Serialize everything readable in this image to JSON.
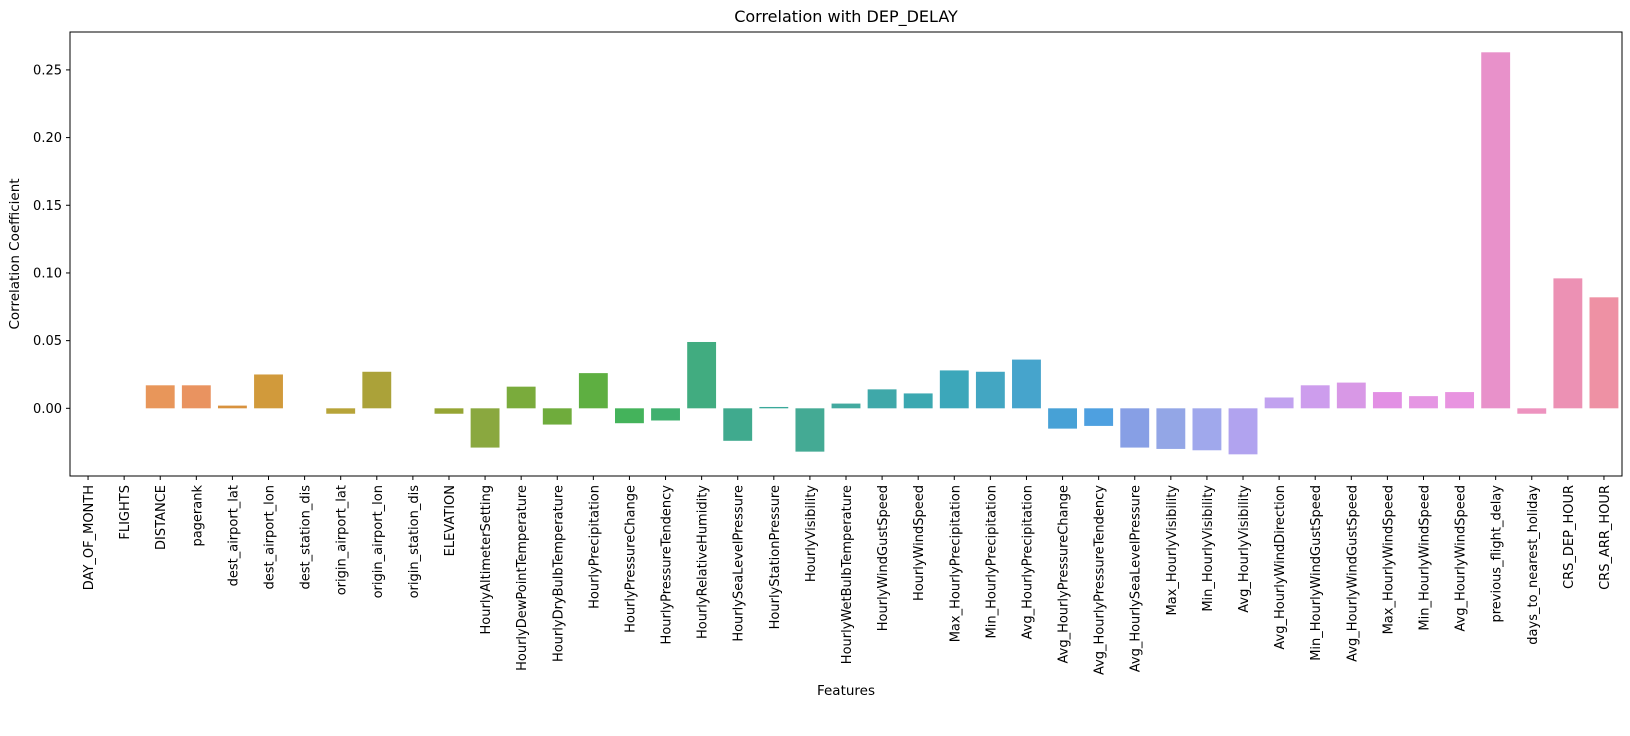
{
  "chart_data": {
    "type": "bar",
    "title": "Correlation with DEP_DELAY",
    "xlabel": "Features",
    "ylabel": "Correlation Coefficient",
    "ylim": [
      -0.05,
      0.278
    ],
    "yticks": [
      0.0,
      0.05,
      0.1,
      0.15,
      0.2,
      0.25
    ],
    "ytick_labels": [
      "0.00",
      "0.05",
      "0.10",
      "0.15",
      "0.20",
      "0.25"
    ],
    "grid": false,
    "legend": "none",
    "categories": [
      "DAY_OF_MONTH",
      "FLIGHTS",
      "DISTANCE",
      "pagerank",
      "dest_airport_lat",
      "dest_airport_lon",
      "dest_station_dis",
      "origin_airport_lat",
      "origin_airport_lon",
      "origin_station_dis",
      "ELEVATION",
      "HourlyAltimeterSetting",
      "HourlyDewPointTemperature",
      "HourlyDryBulbTemperature",
      "HourlyPrecipitation",
      "HourlyPressureChange",
      "HourlyPressureTendency",
      "HourlyRelativeHumidity",
      "HourlySeaLevelPressure",
      "HourlyStationPressure",
      "HourlyVisibility",
      "HourlyWetBulbTemperature",
      "HourlyWindGustSpeed",
      "HourlyWindSpeed",
      "Max_HourlyPrecipitation",
      "Min_HourlyPrecipitation",
      "Avg_HourlyPrecipitation",
      "Avg_HourlyPressureChange",
      "Avg_HourlyPressureTendency",
      "Avg_HourlySeaLevelPressure",
      "Max_HourlyVisibility",
      "Min_HourlyVisibility",
      "Avg_HourlyVisibility",
      "Avg_HourlyWindDirection",
      "Min_HourlyWindGustSpeed",
      "Avg_HourlyWindGustSpeed",
      "Max_HourlyWindSpeed",
      "Min_HourlyWindSpeed",
      "Avg_HourlyWindSpeed",
      "previous_flight_delay",
      "days_to_nearest_holiday",
      "CRS_DEP_HOUR",
      "CRS_ARR_HOUR"
    ],
    "values": [
      0.0,
      0.0,
      0.017,
      0.017,
      0.002,
      0.025,
      0.0,
      -0.004,
      0.027,
      0.0,
      -0.004,
      -0.029,
      0.016,
      -0.012,
      0.026,
      -0.011,
      -0.009,
      0.049,
      -0.024,
      0.001,
      -0.032,
      0.0035,
      0.014,
      0.011,
      0.028,
      0.027,
      0.036,
      -0.015,
      -0.013,
      -0.029,
      -0.03,
      -0.031,
      -0.034,
      0.008,
      0.017,
      0.019,
      0.012,
      0.009,
      0.012,
      0.263,
      -0.004,
      0.096,
      0.082
    ],
    "colors": [
      "#f77189",
      "#f47659",
      "#e8965a",
      "#e99360",
      "#d8923e",
      "#d19a3b",
      "#c29f36",
      "#b7a439",
      "#aba239",
      "#a4a539",
      "#96a534",
      "#8aa83f",
      "#7aab3c",
      "#6fac3c",
      "#5eaf41",
      "#44b35b",
      "#40b06f",
      "#41ac80",
      "#40aa8e",
      "#3aa99a",
      "#44aa94",
      "#43aaa0",
      "#3fa8a9",
      "#3ba8b1",
      "#3ca7ba",
      "#43a6c2",
      "#46a4cc",
      "#47a1d6",
      "#4ea0e0",
      "#879fe5",
      "#93a6e6",
      "#a0a8ec",
      "#b1a3ef",
      "#c1a2ef",
      "#cd9ded",
      "#d898e6",
      "#e290e4",
      "#e596e3",
      "#e894e0",
      "#e891ca",
      "#ed93bf",
      "#ec91b4",
      "#ee91a4"
    ]
  }
}
